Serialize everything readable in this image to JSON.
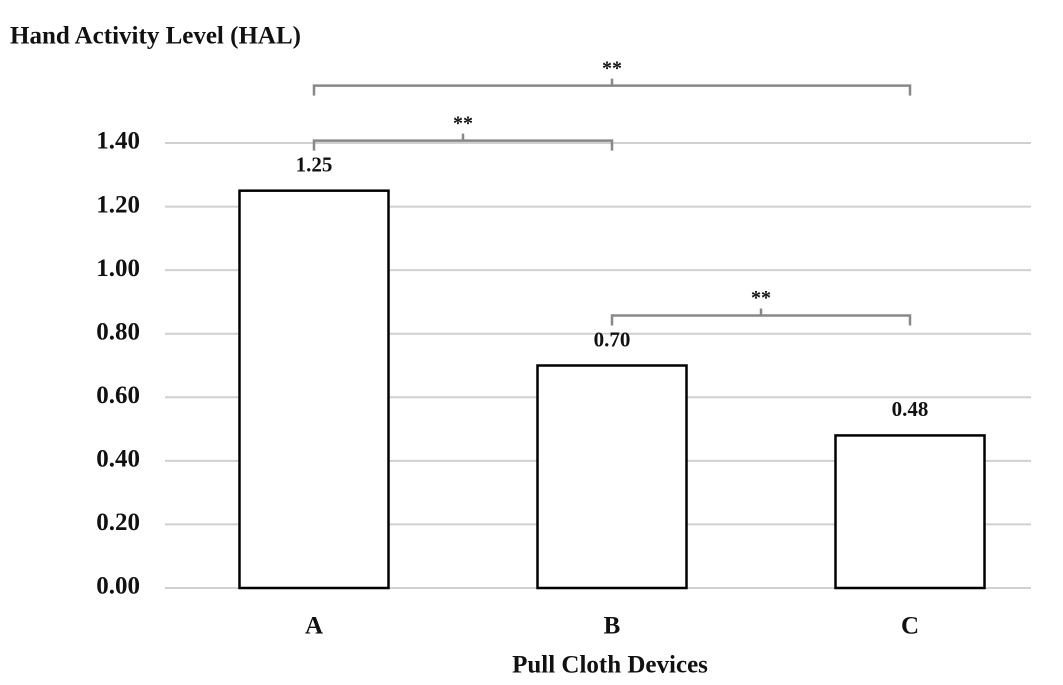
{
  "chart_data": {
    "type": "bar",
    "y_axis_title": "Hand Activity Level (HAL)",
    "x_axis_title": "Pull Cloth Devices",
    "categories": [
      "A",
      "B",
      "C"
    ],
    "values": [
      1.25,
      0.7,
      0.48
    ],
    "value_labels": [
      "1.25",
      "0.70",
      "0.48"
    ],
    "color": "#ffffff",
    "ylim": [
      0,
      1.4
    ],
    "yticks": [
      {
        "value": 0,
        "label": "0.00"
      },
      {
        "value": 0.2,
        "label": "0.20"
      },
      {
        "value": 0.4,
        "label": "0.40"
      },
      {
        "value": 0.6,
        "label": "0.60"
      },
      {
        "value": 0.8,
        "label": "0.80"
      },
      {
        "value": 1,
        "label": "1.00"
      },
      {
        "value": 1.2,
        "label": "1.20"
      },
      {
        "value": 1.4,
        "label": "1.40"
      }
    ],
    "grid": true,
    "annotations": [
      {
        "from": "B",
        "to": "C",
        "label": "**"
      },
      {
        "from": "A",
        "to": "B",
        "label": "**"
      },
      {
        "from": "A",
        "to": "C",
        "label": "**"
      }
    ]
  }
}
